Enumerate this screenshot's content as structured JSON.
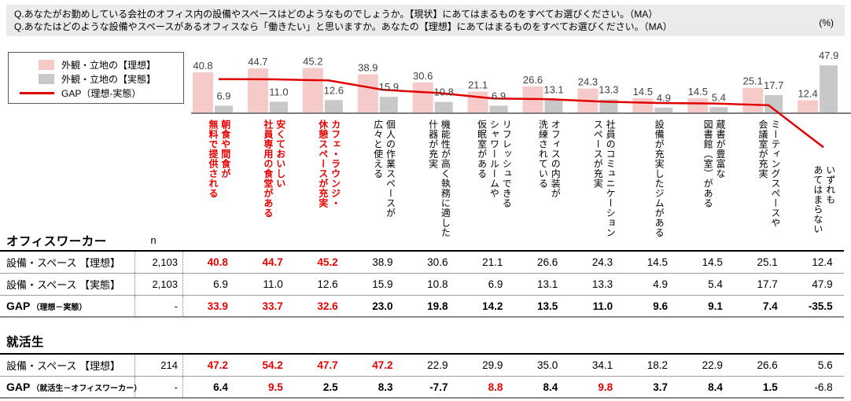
{
  "header": {
    "question1": "Q.あなたがお勤めしている会社のオフィス内の設備やスペースはどのようなものでしょうか。【現状】にあてはまるものをすべてお選びください。（MA）",
    "question2": "Q.あなたはどのような設備やスペースがあるオフィスなら「働きたい」と思いますか。あなたの【理想】にあてはまるものをすべてお選びください。（MA）",
    "unit_label": "(%)"
  },
  "legend": {
    "ideal_label": "外観・立地の【理想】",
    "actual_label": "外観・立地の【実態】",
    "gap_label": "GAP（理想-実態）",
    "ideal_color": "#f7caca",
    "actual_color": "#c8c8c8",
    "gap_color": "#e00000"
  },
  "chart_data": {
    "type": "bar",
    "unit": "%",
    "grid": false,
    "legend_position": "top-left",
    "ylim": [
      -40,
      50
    ],
    "categories": [
      "朝食や間食が\n無料で提供される",
      "安くておいしい\n社員専用の食堂がある",
      "カフェ・ラウンジ・\n休憩スペースが充実",
      "個人の作業スペースが\n広々と使える",
      "機能性が高く執務に適した\n什器が充実",
      "リフレッシュできる\nシャワールームや\n仮眠室がある",
      "オフィスの内装が\n洗練されている",
      "社員のコミュニケーション\nスペースが充実",
      "設備が充実したジムがある",
      "蔵書が豊富な\n図書館（室）がある",
      "ミーティングスペースや\n会議室が充実",
      "いずれも\nあてはまらない"
    ],
    "category_styles": [
      "red",
      "red",
      "red",
      "black",
      "black",
      "black",
      "black",
      "black",
      "black",
      "black",
      "black",
      "black"
    ],
    "series": [
      {
        "name": "外観・立地の【理想】",
        "type": "bar",
        "color": "#f7caca",
        "values": [
          40.8,
          44.7,
          45.2,
          38.9,
          30.6,
          21.1,
          26.6,
          24.3,
          14.5,
          14.5,
          25.1,
          12.4
        ]
      },
      {
        "name": "外観・立地の【実態】",
        "type": "bar",
        "color": "#c8c8c8",
        "values": [
          6.9,
          11.0,
          12.6,
          15.9,
          10.8,
          6.9,
          13.1,
          13.3,
          4.9,
          5.4,
          17.7,
          47.9
        ]
      },
      {
        "name": "GAP（理想-実態）",
        "type": "line",
        "color": "#e00000",
        "values": [
          33.9,
          33.7,
          32.6,
          23.0,
          19.8,
          14.2,
          13.5,
          11.0,
          9.6,
          9.1,
          7.4,
          -35.5
        ]
      }
    ]
  },
  "tables": [
    {
      "id": "office-worker",
      "title": "オフィスワーカー",
      "n_header": "n",
      "rows": [
        {
          "label": "設備・スペース 【理想】",
          "note": "",
          "n": "2,103",
          "label_bold": false,
          "values": [
            "40.8",
            "44.7",
            "45.2",
            "38.9",
            "30.6",
            "21.1",
            "26.6",
            "24.3",
            "14.5",
            "14.5",
            "25.1",
            "12.4"
          ],
          "styles": [
            "rb",
            "rb",
            "rb",
            "n",
            "n",
            "n",
            "n",
            "n",
            "n",
            "n",
            "n",
            "n"
          ]
        },
        {
          "label": "設備・スペース 【実態】",
          "note": "",
          "n": "2,103",
          "label_bold": false,
          "values": [
            "6.9",
            "11.0",
            "12.6",
            "15.9",
            "10.8",
            "6.9",
            "13.1",
            "13.3",
            "4.9",
            "5.4",
            "17.7",
            "47.9"
          ],
          "styles": [
            "n",
            "n",
            "n",
            "n",
            "n",
            "n",
            "n",
            "n",
            "n",
            "n",
            "n",
            "n"
          ]
        },
        {
          "label": "GAP",
          "note": "（理想－実態）",
          "n": "-",
          "label_bold": true,
          "values": [
            "33.9",
            "33.7",
            "32.6",
            "23.0",
            "19.8",
            "14.2",
            "13.5",
            "11.0",
            "9.6",
            "9.1",
            "7.4",
            "-35.5"
          ],
          "styles": [
            "rb",
            "rb",
            "rb",
            "b",
            "b",
            "b",
            "b",
            "b",
            "b",
            "b",
            "b",
            "b"
          ]
        }
      ]
    },
    {
      "id": "students",
      "title": "就活生",
      "n_header": "",
      "rows": [
        {
          "label": "設備・スペース 【理想】",
          "note": "",
          "n": "214",
          "label_bold": false,
          "values": [
            "47.2",
            "54.2",
            "47.7",
            "47.2",
            "22.9",
            "29.9",
            "35.0",
            "34.1",
            "18.2",
            "22.9",
            "26.6",
            "5.6"
          ],
          "styles": [
            "rb",
            "rb",
            "rb",
            "rb",
            "n",
            "n",
            "n",
            "n",
            "n",
            "n",
            "n",
            "n"
          ]
        },
        {
          "label": "GAP",
          "note": "（就活生－オフィスワーカー）",
          "n": "-",
          "label_bold": true,
          "values": [
            "6.4",
            "9.5",
            "2.5",
            "8.3",
            "-7.7",
            "8.8",
            "8.4",
            "9.8",
            "3.7",
            "8.4",
            "1.5",
            "-6.8"
          ],
          "styles": [
            "b",
            "rb",
            "b",
            "b",
            "b",
            "rb",
            "b",
            "rb",
            "b",
            "b",
            "b",
            "n"
          ]
        }
      ]
    }
  ]
}
